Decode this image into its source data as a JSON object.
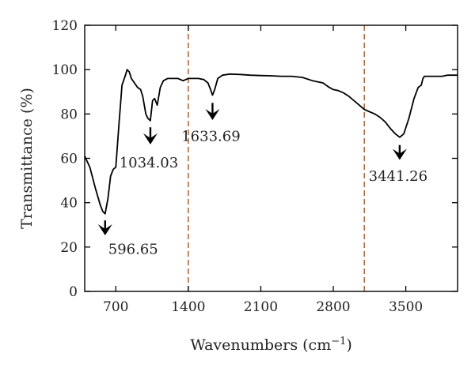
{
  "chart_data": {
    "type": "line",
    "title": "",
    "xlabel": "Wavenumbers (cm",
    "xlabel_sup": "−1",
    "xlabel_close": ")",
    "ylabel": "Transmittance (%)",
    "xlim": [
      400,
      4000
    ],
    "ylim": [
      0,
      120
    ],
    "x_ticks": [
      700,
      1400,
      2100,
      2800,
      3500
    ],
    "y_ticks": [
      0,
      20,
      40,
      60,
      80,
      100,
      120
    ],
    "grid": false,
    "legend": "none",
    "series": [
      {
        "color": "#000000",
        "x": [
          400,
          450,
          500,
          550,
          575,
          597,
          625,
          650,
          675,
          700,
          730,
          760,
          790,
          810,
          830,
          850,
          880,
          910,
          940,
          960,
          990,
          1010,
          1034,
          1055,
          1075,
          1100,
          1130,
          1160,
          1200,
          1250,
          1300,
          1350,
          1400,
          1450,
          1500,
          1550,
          1590,
          1615,
          1634,
          1655,
          1685,
          1730,
          1800,
          1900,
          2000,
          2100,
          2200,
          2300,
          2400,
          2500,
          2600,
          2700,
          2760,
          2800,
          2850,
          2900,
          2950,
          3000,
          3050,
          3100,
          3150,
          3200,
          3250,
          3300,
          3350,
          3400,
          3441,
          3480,
          3530,
          3580,
          3620,
          3650,
          3665,
          3680,
          3700,
          3750,
          3800,
          3850,
          3900,
          4000
        ],
        "y": [
          61,
          56,
          47,
          39,
          36,
          35,
          42,
          52,
          55,
          56,
          75,
          93,
          97,
          100,
          99,
          96,
          94,
          92,
          91,
          88,
          80,
          78,
          77,
          86,
          87,
          84,
          92,
          95,
          96,
          96,
          96,
          95,
          96,
          96,
          96,
          95.5,
          94,
          91,
          88.5,
          91,
          96,
          97.5,
          98,
          97.8,
          97.5,
          97.3,
          97.2,
          97,
          97,
          96.5,
          95,
          94,
          92,
          91,
          90.5,
          89.5,
          88,
          86,
          84,
          82,
          81,
          80,
          78.5,
          76.5,
          73.5,
          71,
          69.5,
          71,
          78,
          87,
          92,
          93,
          96,
          97,
          97,
          97,
          97,
          97,
          97.5,
          97.5
        ]
      }
    ],
    "vlines": [
      {
        "x": 1400,
        "color": "#c8602a"
      },
      {
        "x": 3100,
        "color": "#c8602a"
      }
    ],
    "annotations": [
      {
        "text": "596.65",
        "x": 597,
        "y": 35,
        "arrow_y": [
          32,
          26
        ],
        "label_y": 19
      },
      {
        "text": "1034.03",
        "x": 1034,
        "y": 77,
        "arrow_y": [
          74,
          67
        ],
        "label_y": 58
      },
      {
        "text": "1633.69",
        "x": 1634,
        "y": 88.5,
        "arrow_y": [
          85,
          78
        ],
        "label_y": 70
      },
      {
        "text": "3441.26",
        "x": 3441,
        "y": 69.5,
        "arrow_y": [
          66,
          60
        ],
        "label_y": 52
      }
    ]
  }
}
